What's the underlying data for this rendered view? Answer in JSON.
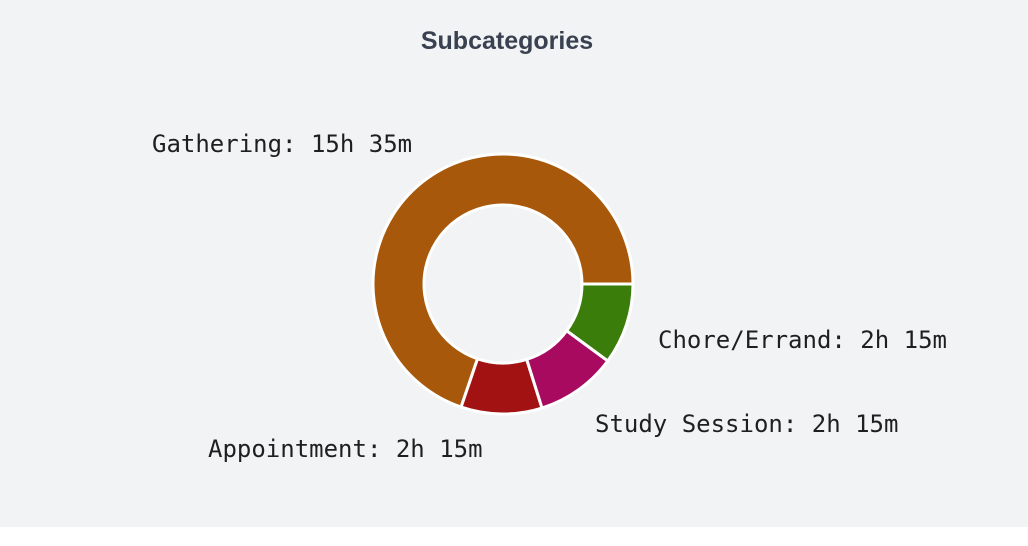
{
  "chart_data": {
    "type": "pie",
    "variant": "donut",
    "title": "Subcategories",
    "start_angle_deg": 0,
    "direction": "counterclockwise",
    "legend_position": "none",
    "total_minutes": 1340,
    "slices": [
      {
        "name": "Gathering",
        "duration": "15h 35m",
        "minutes": 935,
        "label": "Gathering: 15h 35m",
        "color": "#a8580a"
      },
      {
        "name": "Appointment",
        "duration": "2h 15m",
        "minutes": 135,
        "label": "Appointment: 2h 15m",
        "color": "#a31212"
      },
      {
        "name": "Study Session",
        "duration": "2h 15m",
        "minutes": 135,
        "label": "Study Session: 2h 15m",
        "color": "#a80a5f"
      },
      {
        "name": "Chore/Errand",
        "duration": "2h 15m",
        "minutes": 135,
        "label": "Chore/Errand: 2h 15m",
        "color": "#3a7d0b"
      }
    ],
    "colors": {
      "title_text": "#3a4150",
      "label_text": "#1f1f1f",
      "chart_background": "#f1f3f5",
      "segment_gap": "#ffffff"
    }
  }
}
